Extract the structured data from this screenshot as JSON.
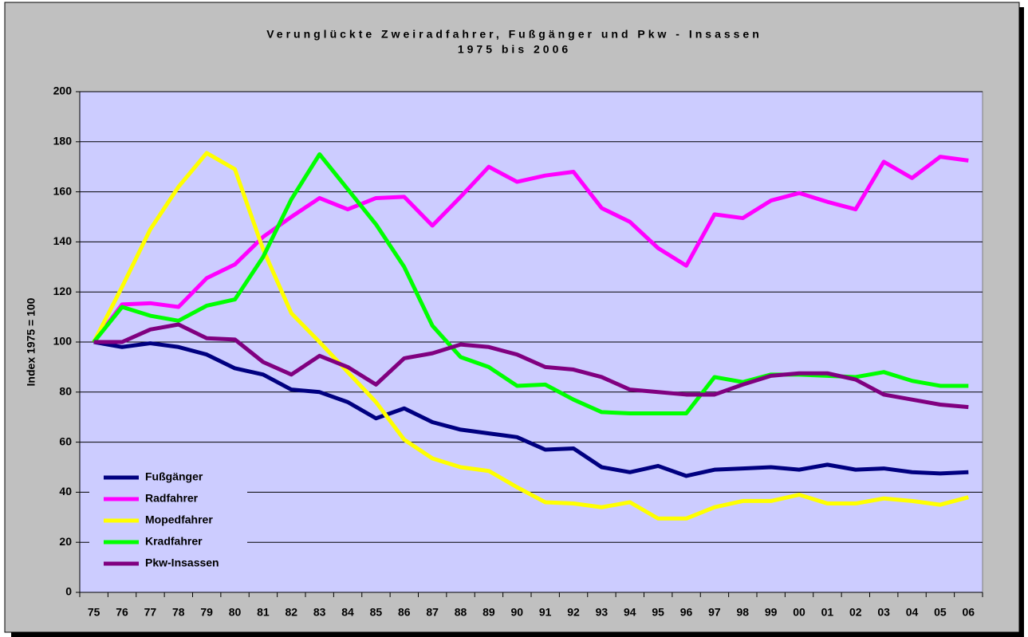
{
  "chart_data": {
    "type": "line",
    "title": "Verunglückte Zweiradfahrer, Fußgänger und Pkw - Insassen",
    "subtitle": "1975 bis 2006",
    "y_label": "Index 1975 = 100",
    "categories": [
      "75",
      "76",
      "77",
      "78",
      "79",
      "80",
      "81",
      "82",
      "83",
      "84",
      "85",
      "86",
      "87",
      "88",
      "89",
      "90",
      "91",
      "92",
      "93",
      "94",
      "95",
      "96",
      "97",
      "98",
      "99",
      "00",
      "01",
      "02",
      "03",
      "04",
      "05",
      "06"
    ],
    "ylim": [
      0,
      200
    ],
    "yticks": [
      0,
      20,
      40,
      60,
      80,
      100,
      120,
      140,
      160,
      180,
      200
    ],
    "grid": true,
    "legend": "lower left",
    "series": [
      {
        "name": "Fußgänger",
        "color": "#000080",
        "values": [
          100,
          98,
          99.5,
          98,
          95,
          89.5,
          87,
          81,
          80,
          76,
          69.5,
          73.5,
          68,
          65,
          63.5,
          62,
          57,
          57.5,
          50,
          48,
          50.5,
          46.5,
          49,
          49.5,
          50,
          49,
          51,
          49,
          49.5,
          48,
          47.5,
          48
        ]
      },
      {
        "name": "Radfahrer",
        "color": "#ff00ff",
        "values": [
          100,
          115,
          115.5,
          114,
          125.5,
          131,
          142,
          150,
          157.5,
          153,
          157.5,
          158,
          146.5,
          158,
          170,
          164,
          166.5,
          168,
          153.5,
          148,
          137.5,
          130.5,
          151,
          149.5,
          156.5,
          159.5,
          156,
          153,
          172,
          165.5,
          174,
          172.5
        ]
      },
      {
        "name": "Mopedfahrer",
        "color": "#ffff00",
        "values": [
          100,
          122,
          145,
          162,
          175.5,
          169,
          137,
          111.5,
          100,
          88,
          76,
          61,
          53.5,
          50,
          48.5,
          42,
          36,
          35.5,
          34,
          36,
          29.5,
          29.5,
          34,
          36.5,
          36.5,
          39,
          35.5,
          35.5,
          37.5,
          36.5,
          35,
          38
        ]
      },
      {
        "name": "Kradfahrer",
        "color": "#00ff00",
        "values": [
          100,
          114,
          110.5,
          108.5,
          114.5,
          117,
          134,
          157,
          175,
          161,
          147,
          130,
          106.5,
          94,
          90,
          82.5,
          83,
          77,
          72,
          71.5,
          71.5,
          71.5,
          86,
          84,
          87,
          87,
          86.5,
          86,
          88,
          84.5,
          82.5,
          82.5
        ]
      },
      {
        "name": "Pkw-Insassen",
        "color": "#800080",
        "values": [
          100,
          100,
          105,
          107,
          101.5,
          101,
          92,
          87,
          94.5,
          90,
          83,
          93.5,
          95.5,
          99,
          98,
          95,
          90,
          89,
          86,
          81,
          80,
          79,
          79,
          83,
          86.5,
          87.5,
          87.5,
          85,
          79,
          77,
          75,
          74
        ]
      }
    ]
  }
}
